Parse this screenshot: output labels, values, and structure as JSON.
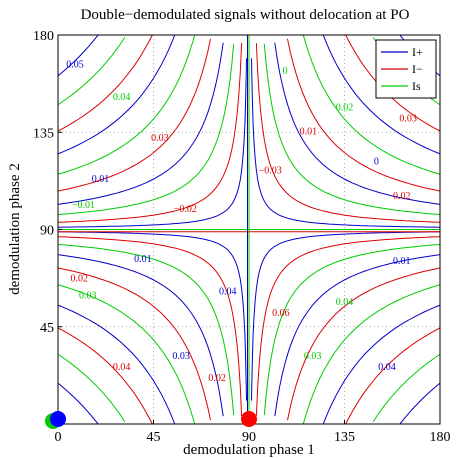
{
  "chart_data": {
    "type": "contour",
    "title": "Double−demodulated signals without delocation at PO",
    "xlabel": "demodulation phase 1",
    "ylabel": "demodulation phase 2",
    "xlim": [
      0,
      180
    ],
    "ylim": [
      0,
      180
    ],
    "xticks": [
      0,
      45,
      90,
      135,
      180
    ],
    "yticks": [
      45,
      90,
      135,
      180
    ],
    "grid": "dotted",
    "legend_position": "top-right",
    "series": [
      {
        "name": "I+",
        "color": "#0000cc"
      },
      {
        "name": "I−",
        "color": "#dd0000"
      },
      {
        "name": "Is",
        "color": "#00cc00"
      }
    ],
    "contour_labels": [
      "0.05",
      "0.04",
      "0.03",
      "0.02",
      "0.01",
      "0",
      "−0.01",
      "−0.02",
      "−0.03",
      "−0.04",
      "0.06"
    ],
    "markers": [
      {
        "x": 0,
        "y": 0,
        "color": "#0000ff"
      },
      {
        "x": 90,
        "y": 0,
        "color": "#ff0000"
      },
      {
        "x": 0,
        "y": 0,
        "color": "#00cc00"
      }
    ]
  }
}
